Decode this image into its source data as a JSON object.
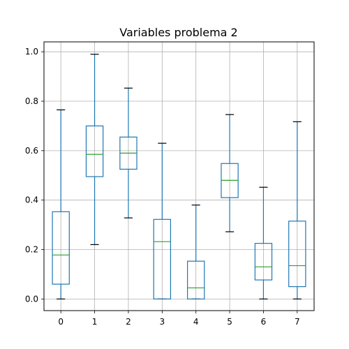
{
  "chart_data": {
    "type": "box",
    "title": "Variables problema 2",
    "xlabel": "",
    "ylabel": "",
    "categories": [
      "0",
      "1",
      "2",
      "3",
      "4",
      "5",
      "6",
      "7"
    ],
    "boxes": [
      {
        "whisker_low": 0.0,
        "q1": 0.06,
        "median": 0.178,
        "q3": 0.353,
        "whisker_high": 0.765
      },
      {
        "whisker_low": 0.22,
        "q1": 0.495,
        "median": 0.585,
        "q3": 0.7,
        "whisker_high": 0.99
      },
      {
        "whisker_low": 0.328,
        "q1": 0.525,
        "median": 0.59,
        "q3": 0.655,
        "whisker_high": 0.853
      },
      {
        "whisker_low": 0.0,
        "q1": 0.0,
        "median": 0.232,
        "q3": 0.322,
        "whisker_high": 0.63
      },
      {
        "whisker_low": 0.0,
        "q1": 0.0,
        "median": 0.045,
        "q3": 0.153,
        "whisker_high": 0.38
      },
      {
        "whisker_low": 0.272,
        "q1": 0.41,
        "median": 0.48,
        "q3": 0.548,
        "whisker_high": 0.746
      },
      {
        "whisker_low": 0.0,
        "q1": 0.077,
        "median": 0.13,
        "q3": 0.225,
        "whisker_high": 0.452
      },
      {
        "whisker_low": 0.0,
        "q1": 0.05,
        "median": 0.135,
        "q3": 0.315,
        "whisker_high": 0.717
      }
    ],
    "yticks": [
      "0.0",
      "0.2",
      "0.4",
      "0.6",
      "0.8",
      "1.0"
    ],
    "ylim": [
      -0.047,
      1.04
    ],
    "grid": true,
    "colors": {
      "box": "#1f77b4",
      "median": "#2ca02c",
      "cap": "#000000",
      "grid": "#b0b0b0"
    }
  }
}
